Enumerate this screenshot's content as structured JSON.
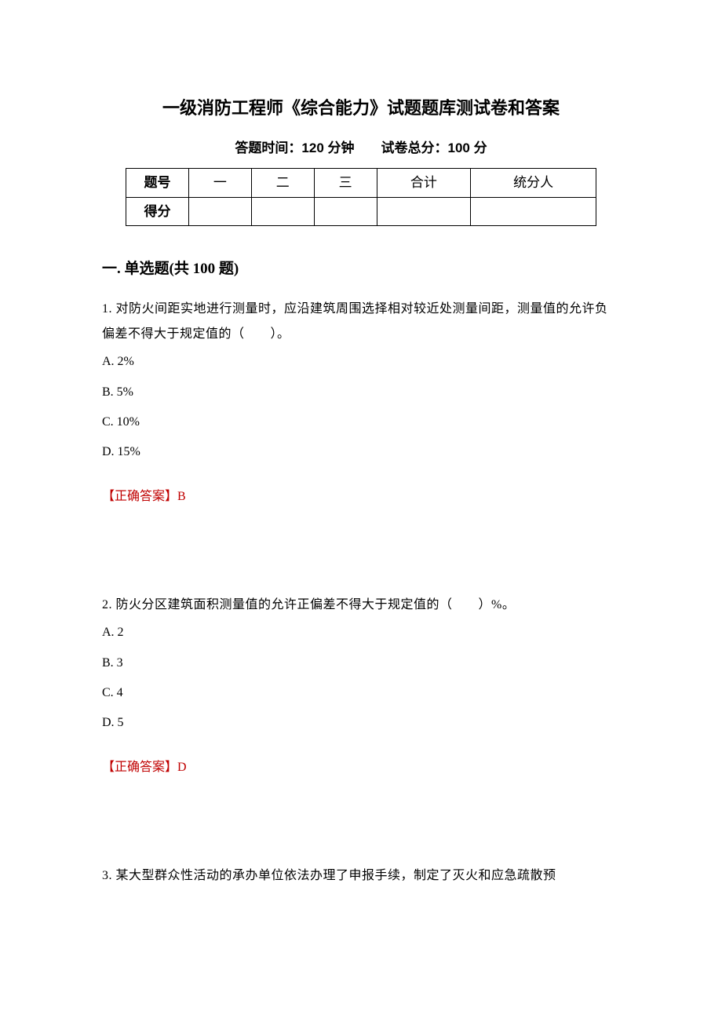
{
  "title": "一级消防工程师《综合能力》试题题库测试卷和答案",
  "subtitle": "答题时间：120 分钟　　试卷总分：100 分",
  "table": {
    "row1": [
      "题号",
      "一",
      "二",
      "三",
      "合计",
      "统分人"
    ],
    "row2": [
      "得分",
      "",
      "",
      "",
      "",
      ""
    ]
  },
  "section": "一. 单选题(共 100 题)",
  "q1": {
    "text": "1. 对防火间距实地进行测量时，应沿建筑周围选择相对较近处测量间距，测量值的允许负偏差不得大于规定值的（　　）。",
    "optA": "A. 2%",
    "optB": "B. 5%",
    "optC": "C. 10%",
    "optD": "D. 15%",
    "answerLabel": "【正确答案】",
    "answerValue": "B"
  },
  "q2": {
    "text": "2. 防火分区建筑面积测量值的允许正偏差不得大于规定值的（　　）%。",
    "optA": "A. 2",
    "optB": "B. 3",
    "optC": "C. 4",
    "optD": "D. 5",
    "answerLabel": "【正确答案】",
    "answerValue": "D"
  },
  "q3": {
    "text": "3. 某大型群众性活动的承办单位依法办理了申报手续，制定了灭火和应急疏散预"
  },
  "colors": {
    "text": "#000000",
    "answer": "#c00000",
    "background": "#ffffff",
    "border": "#000000"
  }
}
